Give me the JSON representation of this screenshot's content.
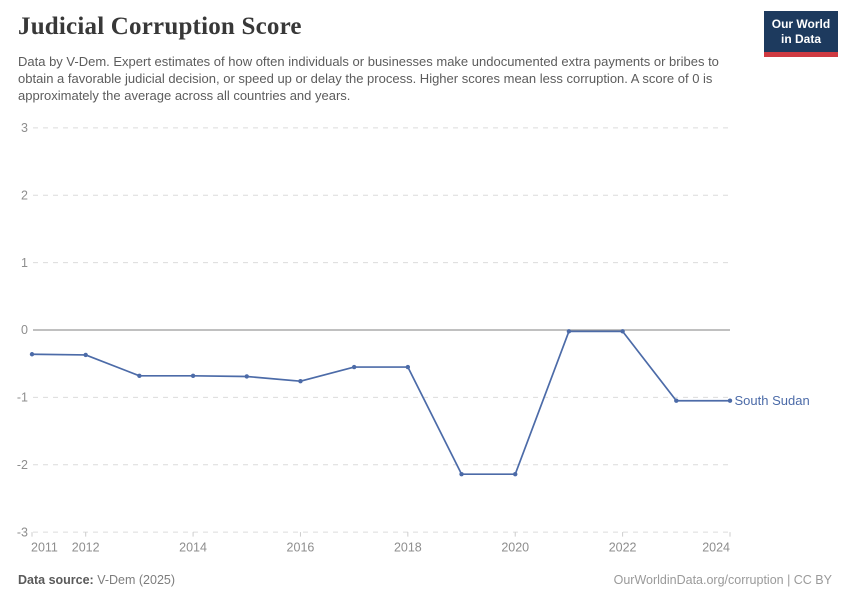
{
  "header": {
    "title": "Judicial Corruption Score",
    "subtitle": "Data by V-Dem. Expert estimates of how often individuals or businesses make undocumented extra payments or bribes to obtain a favorable judicial decision, or speed up or delay the process. Higher scores mean less corruption. A score of 0 is approximately the average across all countries and years."
  },
  "logo": {
    "line1": "Our World",
    "line2": "in Data",
    "bg_color": "#1d3a5e",
    "accent_color": "#cf3a41"
  },
  "chart_data": {
    "type": "line",
    "title": "Judicial Corruption Score",
    "xlabel": "",
    "ylabel": "",
    "x": [
      2011,
      2012,
      2013,
      2014,
      2015,
      2016,
      2017,
      2018,
      2019,
      2020,
      2021,
      2022,
      2023,
      2024
    ],
    "series": [
      {
        "name": "South Sudan",
        "color": "#4c6ba8",
        "values": [
          -0.36,
          -0.37,
          -0.68,
          -0.68,
          -0.69,
          -0.76,
          -0.55,
          -0.55,
          -2.14,
          -2.14,
          -0.02,
          -0.02,
          -1.05,
          -1.05
        ]
      }
    ],
    "ylim": [
      -3,
      3
    ],
    "yticks": [
      3,
      2,
      1,
      0,
      -1,
      -2,
      -3
    ],
    "xticks": [
      2011,
      2012,
      2014,
      2016,
      2018,
      2020,
      2022,
      2024
    ],
    "grid": "horizontal-dashed",
    "zero_line": true,
    "legend_position": "line-end"
  },
  "colors": {
    "line": "#4c6ba8",
    "axis_text": "#8e8e8e",
    "grid": "#dcdcdc",
    "zero_line": "#9a9a9a",
    "tick": "#cccccc"
  },
  "footer": {
    "source_label": "Data source:",
    "source_value": " V-Dem (2025)",
    "credit": "OurWorldinData.org/corruption | CC BY"
  }
}
